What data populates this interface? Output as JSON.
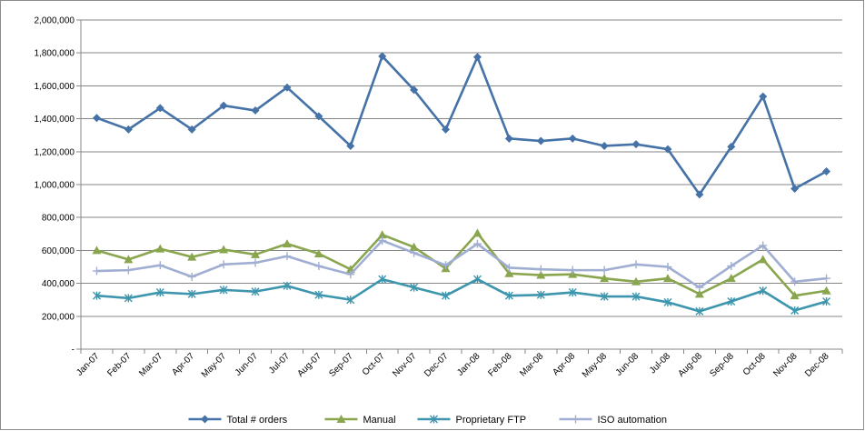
{
  "chart_data": {
    "type": "line",
    "title": "",
    "xlabel": "",
    "ylabel": "",
    "ylim": [
      0,
      2000000
    ],
    "y_ticks": [
      "-",
      "200,000",
      "400,000",
      "600,000",
      "800,000",
      "1,000,000",
      "1,200,000",
      "1,400,000",
      "1,600,000",
      "1,800,000",
      "2,000,000"
    ],
    "grid": true,
    "legend_position": "bottom",
    "categories": [
      "Jan-07",
      "Feb-07",
      "Mar-07",
      "Apr-07",
      "May-07",
      "Jun-07",
      "Jul-07",
      "Aug-07",
      "Sep-07",
      "Oct-07",
      "Nov-07",
      "Dec-07",
      "Jan-08",
      "Feb-08",
      "Mar-08",
      "Apr-08",
      "May-08",
      "Jun-08",
      "Jul-08",
      "Aug-08",
      "Sep-08",
      "Oct-08",
      "Nov-08",
      "Dec-08"
    ],
    "series": [
      {
        "name": "Total # orders",
        "color": "#4572A7",
        "marker": "diamond",
        "values": [
          1405000,
          1335000,
          1465000,
          1335000,
          1480000,
          1450000,
          1590000,
          1415000,
          1235000,
          1780000,
          1575000,
          1335000,
          1775000,
          1280000,
          1265000,
          1280000,
          1235000,
          1245000,
          1215000,
          940000,
          1230000,
          1535000,
          975000,
          1080000
        ]
      },
      {
        "name": "Manual",
        "color": "#89A54E",
        "marker": "triangle",
        "values": [
          600000,
          545000,
          610000,
          560000,
          605000,
          575000,
          640000,
          580000,
          485000,
          695000,
          620000,
          490000,
          705000,
          460000,
          450000,
          455000,
          430000,
          410000,
          430000,
          335000,
          430000,
          545000,
          325000,
          355000
        ]
      },
      {
        "name": "Proprietary FTP",
        "color": "#3D96AE",
        "marker": "star",
        "values": [
          325000,
          310000,
          345000,
          335000,
          360000,
          350000,
          385000,
          330000,
          300000,
          425000,
          375000,
          325000,
          425000,
          325000,
          330000,
          345000,
          320000,
          320000,
          285000,
          230000,
          290000,
          355000,
          235000,
          290000
        ]
      },
      {
        "name": "ISO automation",
        "color": "#A0AED2",
        "marker": "plus",
        "values": [
          475000,
          480000,
          510000,
          440000,
          515000,
          525000,
          565000,
          505000,
          455000,
          660000,
          585000,
          510000,
          640000,
          495000,
          485000,
          480000,
          480000,
          515000,
          500000,
          375000,
          505000,
          630000,
          410000,
          430000
        ]
      }
    ]
  }
}
